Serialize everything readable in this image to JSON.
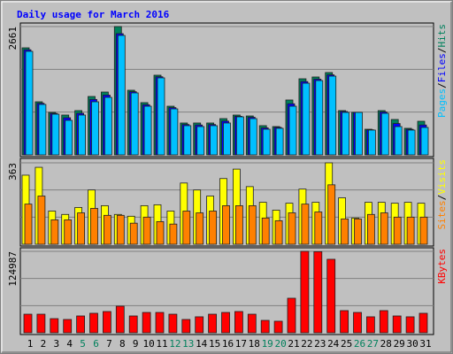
{
  "chart_data": [
    {
      "type": "bar",
      "title": "Daily usage for March 2016",
      "series": [
        {
          "name": "Hits",
          "color": "#00805c",
          "values": [
            2220,
            1101,
            881,
            826,
            918,
            1211,
            1303,
            2661,
            1340,
            1083,
            1652,
            1009,
            661,
            661,
            661,
            752,
            826,
            807,
            606,
            587,
            1138,
            1578,
            1615,
            1707,
            918,
            881,
            532,
            918,
            734,
            551,
            697
          ]
        },
        {
          "name": "Files",
          "color": "#0000ff",
          "values": [
            2180,
            1070,
            860,
            770,
            862,
            1150,
            1240,
            2514,
            1310,
            1040,
            1620,
            980,
            630,
            620,
            630,
            700,
            800,
            780,
            560,
            570,
            1060,
            1520,
            1570,
            1660,
            900,
            881,
            520,
            890,
            650,
            530,
            620
          ]
        },
        {
          "name": "Pages",
          "color": "#00c0ff",
          "values": [
            2147,
            1046,
            844,
            716,
            826,
            1101,
            1193,
            2477,
            1285,
            1009,
            1597,
            954,
            606,
            587,
            606,
            661,
            789,
            752,
            532,
            551,
            1009,
            1486,
            1541,
            1633,
            881,
            881,
            514,
            862,
            587,
            514,
            569
          ]
        }
      ],
      "ylim": [
        0,
        2661
      ],
      "yticks": [
        2661
      ],
      "legend_separator": "/"
    },
    {
      "type": "bar",
      "series": [
        {
          "name": "Visits",
          "color": "#ffff00",
          "values": [
            308,
            343,
            148,
            133,
            164,
            242,
            172,
            133,
            125,
            172,
            176,
            148,
            273,
            242,
            215,
            293,
            335,
            257,
            187,
            152,
            183,
            246,
            187,
            363,
            207,
            117,
            187,
            187,
            183,
            187,
            183
          ]
        },
        {
          "name": "Sites",
          "color": "#ff8000",
          "values": [
            179,
            215,
            109,
            109,
            140,
            160,
            129,
            129,
            94,
            121,
            101,
            90,
            148,
            140,
            148,
            172,
            172,
            172,
            117,
            105,
            140,
            179,
            144,
            265,
            113,
            113,
            133,
            140,
            121,
            121,
            121
          ]
        }
      ],
      "ylim": [
        0,
        363
      ],
      "yticks": [
        363
      ],
      "legend_separator": "/"
    },
    {
      "type": "bar",
      "categories": [
        "1",
        "2",
        "3",
        "4",
        "5",
        "6",
        "7",
        "8",
        "9",
        "10",
        "11",
        "12",
        "13",
        "14",
        "15",
        "16",
        "17",
        "18",
        "19",
        "20",
        "21",
        "22",
        "23",
        "24",
        "25",
        "26",
        "27",
        "28",
        "29",
        "30",
        "31"
      ],
      "category_colors": [
        "#000000",
        "#000000",
        "#000000",
        "#000000",
        "#00805c",
        "#00805c",
        "#000000",
        "#000000",
        "#000000",
        "#000000",
        "#000000",
        "#00805c",
        "#00805c",
        "#000000",
        "#000000",
        "#000000",
        "#000000",
        "#000000",
        "#00805c",
        "#00805c",
        "#000000",
        "#000000",
        "#000000",
        "#000000",
        "#000000",
        "#00805c",
        "#00805c",
        "#000000",
        "#000000",
        "#000000",
        "#000000"
      ],
      "series": [
        {
          "name": "KBytes",
          "color": "#ff0000",
          "values": [
            28500,
            28500,
            21700,
            20400,
            25800,
            29900,
            32600,
            40800,
            25800,
            31200,
            31200,
            28500,
            20400,
            24500,
            28500,
            31200,
            32600,
            28500,
            19000,
            17700,
            53000,
            124987,
            124500,
            112800,
            34000,
            31200,
            24500,
            34000,
            25800,
            24500,
            29900
          ]
        }
      ],
      "ylim": [
        0,
        124987
      ],
      "yticks": [
        124987
      ],
      "legend_separator": "/"
    }
  ]
}
